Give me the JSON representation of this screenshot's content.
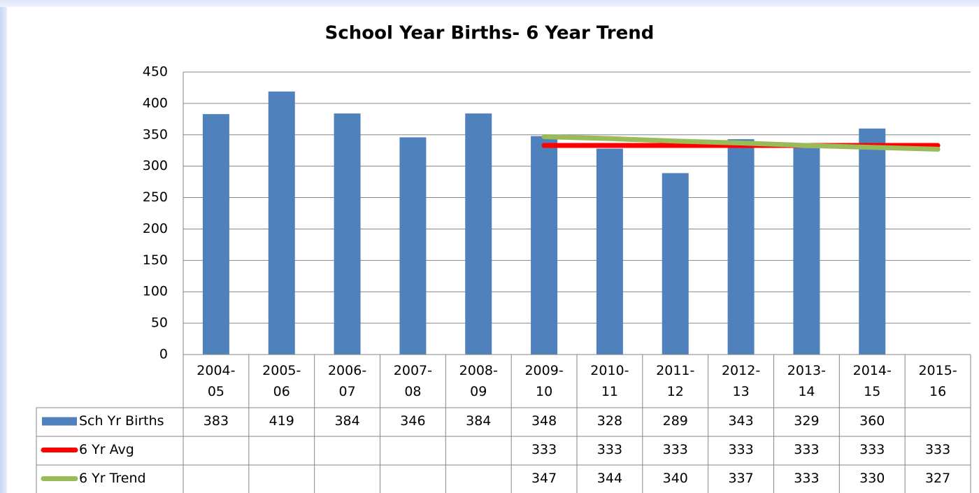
{
  "chart_data": {
    "type": "bar",
    "title": "School Year Births- 6 Year Trend",
    "categories": [
      "2004-05",
      "2005-06",
      "2006-07",
      "2007-08",
      "2008-09",
      "2009-10",
      "2010-11",
      "2011-12",
      "2012-13",
      "2013-14",
      "2014-15",
      "2015-16"
    ],
    "series": [
      {
        "name": "Sch Yr Births",
        "type": "bar",
        "color": "#4f81bd",
        "values": [
          383,
          419,
          384,
          346,
          384,
          348,
          328,
          289,
          343,
          329,
          360,
          null
        ]
      },
      {
        "name": "6 Yr Avg",
        "type": "line",
        "color": "#ff0000",
        "values": [
          null,
          null,
          null,
          null,
          null,
          333,
          333,
          333,
          333,
          333,
          333,
          333
        ]
      },
      {
        "name": "6 Yr Trend",
        "type": "line",
        "color": "#9bbb59",
        "values": [
          null,
          null,
          null,
          null,
          null,
          347,
          344,
          340,
          337,
          333,
          330,
          327
        ]
      }
    ],
    "ylim": [
      0,
      450
    ],
    "yticks": [
      0,
      50,
      100,
      150,
      200,
      250,
      300,
      350,
      400,
      450
    ],
    "grid": true,
    "data_table": true
  }
}
